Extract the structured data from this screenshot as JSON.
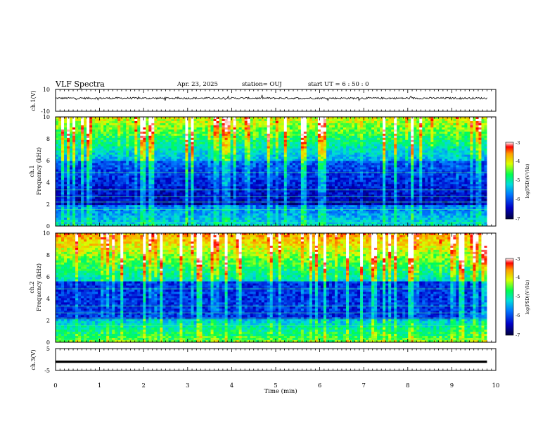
{
  "header": {
    "title": "VLF Spectra",
    "date": "Apr. 23, 2025",
    "station": "station= OUJ",
    "start_time": "start  UT =   6 : 50 : 0"
  },
  "chart_data": [
    {
      "type": "line",
      "panel": "ch1-waveform",
      "ylabel": "ch.1(V)",
      "ylim": [
        -10,
        10
      ],
      "yticks": [
        "10",
        "-10"
      ],
      "description_value": "noise trace centred near 2 V",
      "x": [
        0,
        1,
        2,
        3,
        4,
        5,
        6,
        7,
        8,
        9,
        9.8
      ],
      "y": [
        2,
        2,
        1.9,
        2.1,
        1.8,
        2,
        2.1,
        1.9,
        2,
        2,
        2
      ]
    },
    {
      "type": "heatmap",
      "panel": "ch1-spectrogram",
      "ylabel_top": "ch.1",
      "ylabel": "Frequency  (kHz)",
      "ylim": [
        0,
        10
      ],
      "yticks": [
        "0",
        "2",
        "4",
        "6",
        "8",
        "10"
      ],
      "colorbar": {
        "label": "log(PSD)(V²/Hz)",
        "range": [
          -7,
          -3
        ],
        "ticks": [
          "-3",
          "-4",
          "-5",
          "-6",
          "-7"
        ]
      }
    },
    {
      "type": "heatmap",
      "panel": "ch2-spectrogram",
      "ylabel_top": "ch.2",
      "ylabel": "Frequency  (kHz)",
      "ylim": [
        0,
        10
      ],
      "yticks": [
        "0",
        "2",
        "4",
        "6",
        "8",
        "10"
      ],
      "colorbar": {
        "label": "log(PSD)(V²/Hz)",
        "range": [
          -7,
          -3
        ],
        "ticks": [
          "-3",
          "-4",
          "-5",
          "-6",
          "-7"
        ]
      }
    },
    {
      "type": "line",
      "panel": "ch3-waveform",
      "ylabel": "ch.3(V)",
      "ylim": [
        -5,
        5
      ],
      "yticks": [
        "5",
        "-5"
      ],
      "x": [
        0,
        9.8
      ],
      "y": [
        -1,
        -1
      ]
    }
  ],
  "xaxis": {
    "label": "Time  (min)",
    "xlim": [
      0,
      10
    ],
    "ticks": [
      "0",
      "1",
      "2",
      "3",
      "4",
      "5",
      "6",
      "7",
      "8",
      "9",
      "10"
    ]
  },
  "colors": {
    "colormap": [
      "#00003c",
      "#0000c8",
      "#0078ff",
      "#00dcdc",
      "#00ff50",
      "#dcff00",
      "#ffa000",
      "#ff0000",
      "#ffffff"
    ]
  }
}
